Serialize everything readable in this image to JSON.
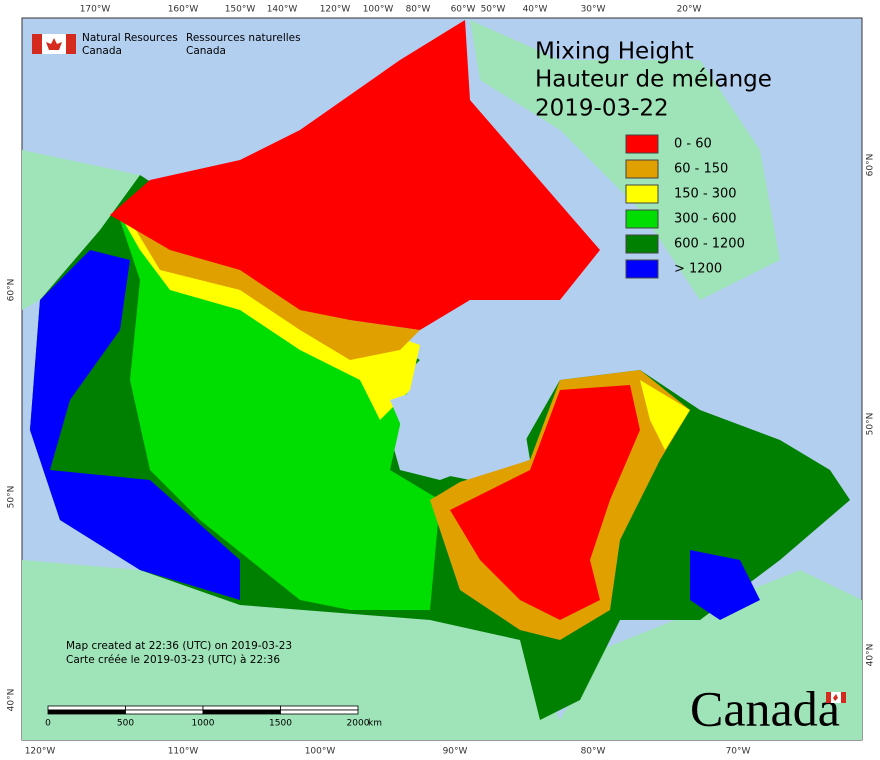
{
  "logo": {
    "en": [
      "Natural Resources",
      "Canada"
    ],
    "fr": [
      "Ressources naturelles",
      "Canada"
    ]
  },
  "title": [
    "Mixing Height",
    "Hauteur de mélange",
    "2019-03-22"
  ],
  "legend": [
    {
      "label": "0 - 60",
      "color": "#ff0000"
    },
    {
      "label": "60 - 150",
      "color": "#e0a000"
    },
    {
      "label": "150 - 300",
      "color": "#ffff00"
    },
    {
      "label": "300 - 600",
      "color": "#00dd00"
    },
    {
      "label": "600 - 1200",
      "color": "#008000"
    },
    {
      "label": "> 1200",
      "color": "#0000ff"
    }
  ],
  "graticule": {
    "top": [
      "170°W",
      "160°W",
      "150°W",
      "140°W",
      "120°W",
      "100°W",
      "80°W",
      "60°W",
      "50°W",
      "40°W",
      "30°W",
      "20°W"
    ],
    "bottom": [
      "120°W",
      "110°W",
      "100°W",
      "90°W",
      "80°W",
      "70°W"
    ],
    "left": [
      "60°N",
      "50°N",
      "40°N"
    ],
    "right": [
      "60°N",
      "50°N",
      "40°N"
    ]
  },
  "credits": [
    "Map created at 22:36 (UTC) on 2019-03-23",
    "Carte créée le 2019-03-23 (UTC) à 22:36"
  ],
  "scale_bar": {
    "labels": [
      "0",
      "500",
      "1000",
      "1500",
      "2000"
    ],
    "unit": "km"
  },
  "wordmark": "Canada"
}
